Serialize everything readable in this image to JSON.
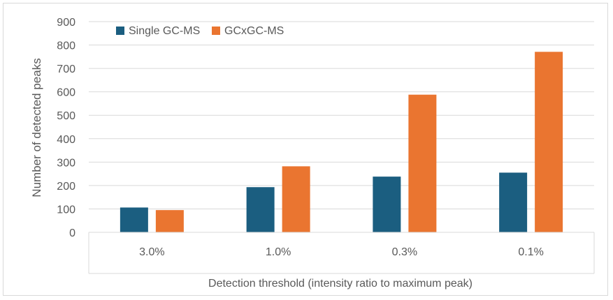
{
  "chart_data": {
    "type": "bar",
    "title": "",
    "xlabel": "Detection threshold (intensity ratio to maximum peak)",
    "ylabel": "Number of detected peaks",
    "categories": [
      "3.0%",
      "1.0%",
      "0.3%",
      "0.1%"
    ],
    "series": [
      {
        "name": "Single GC-MS",
        "values": [
          106,
          193,
          238,
          255
        ],
        "color": "#1b5e80"
      },
      {
        "name": "GCxGC-MS",
        "values": [
          95,
          282,
          588,
          771
        ],
        "color": "#ea7530"
      }
    ],
    "ylim": [
      0,
      900
    ],
    "yticks": [
      0,
      100,
      200,
      300,
      400,
      500,
      600,
      700,
      800,
      900
    ],
    "grid": true,
    "legend_position": "top-left"
  }
}
